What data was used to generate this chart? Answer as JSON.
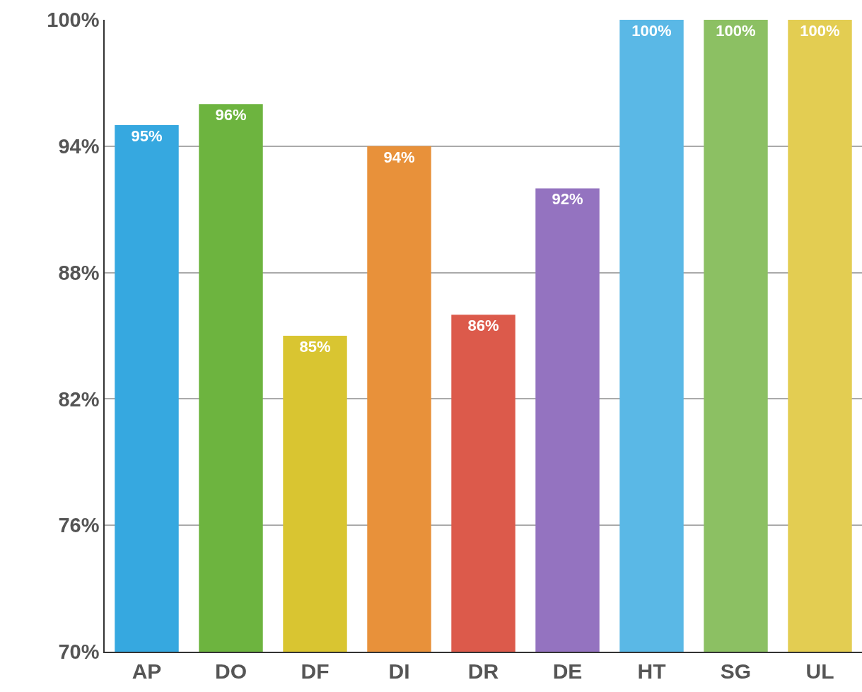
{
  "chart_data": {
    "type": "bar",
    "categories": [
      "AP",
      "DO",
      "DF",
      "DI",
      "DR",
      "DE",
      "HT",
      "SG",
      "UL"
    ],
    "values": [
      95,
      96,
      85,
      94,
      86,
      92,
      100,
      100,
      100
    ],
    "value_labels": [
      "95%",
      "96%",
      "85%",
      "94%",
      "86%",
      "92%",
      "100%",
      "100%",
      "100%"
    ],
    "colors": [
      "#36a8e0",
      "#6db43f",
      "#d9c531",
      "#e8913a",
      "#dc5a4b",
      "#9473c0",
      "#5ab8e6",
      "#8cc063",
      "#e3cd52"
    ],
    "ylim": [
      70,
      100
    ],
    "yticks": [
      {
        "value": 70,
        "label": "70%"
      },
      {
        "value": 76,
        "label": "76%"
      },
      {
        "value": 82,
        "label": "82%"
      },
      {
        "value": 88,
        "label": "88%"
      },
      {
        "value": 94,
        "label": "94%"
      },
      {
        "value": 100,
        "label": "100%"
      }
    ],
    "grid": "y"
  }
}
